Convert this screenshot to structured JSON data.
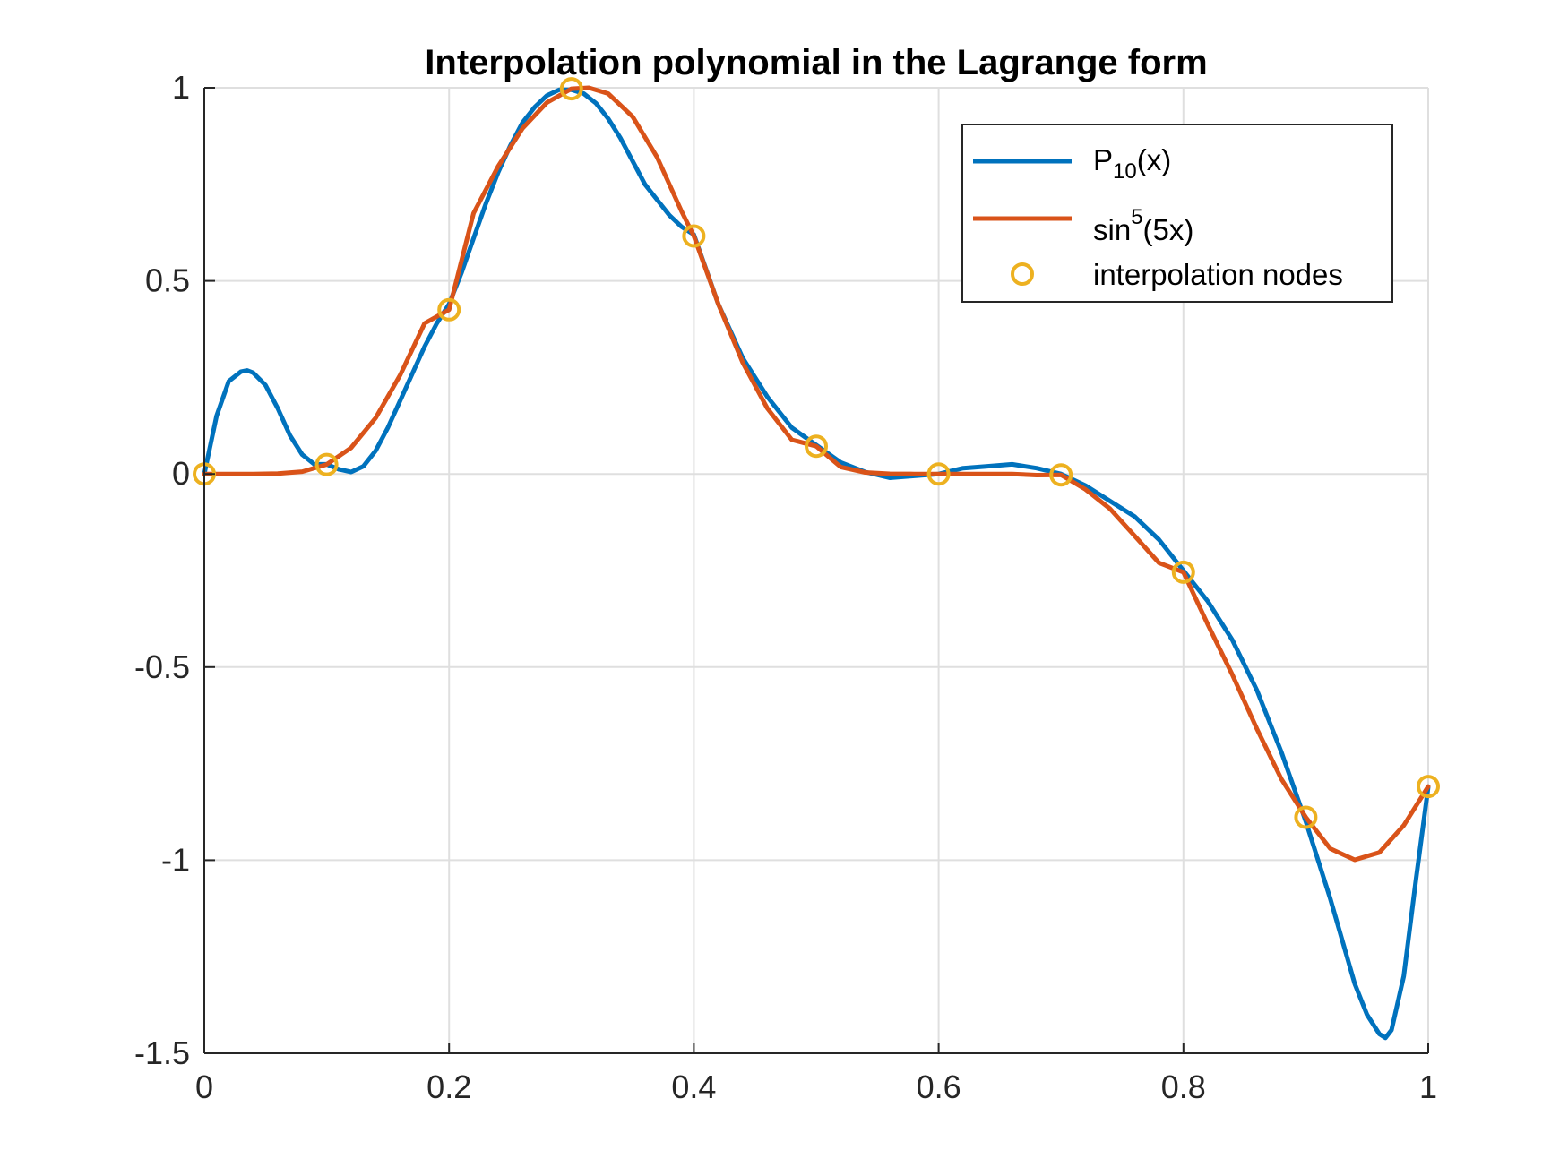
{
  "chart_data": {
    "type": "line",
    "title": "Interpolation polynomial in the Lagrange form",
    "xlabel": "",
    "ylabel": "",
    "xlim": [
      0,
      1
    ],
    "ylim": [
      -1.5,
      1
    ],
    "x_ticks": [
      "0",
      "0.2",
      "0.4",
      "0.6",
      "0.8",
      "1"
    ],
    "x_tick_values": [
      0,
      0.2,
      0.4,
      0.6,
      0.8,
      1
    ],
    "y_ticks": [
      "1",
      "0.5",
      "0",
      "-0.5",
      "-1",
      "-1.5"
    ],
    "y_tick_values": [
      1,
      0.5,
      0,
      -0.5,
      -1,
      -1.5
    ],
    "grid": true,
    "legend_position": "top-right",
    "legend": [
      {
        "base": "P",
        "script": "10",
        "script_type": "sub",
        "tail": "(x)"
      },
      {
        "base": "sin",
        "script": "5",
        "script_type": "sup",
        "tail": "(5x)"
      },
      {
        "base": "interpolation nodes",
        "script": "",
        "script_type": "",
        "tail": ""
      }
    ],
    "series": [
      {
        "style": "line",
        "color": "#0072bd",
        "x": [
          0,
          0.01,
          0.02,
          0.03,
          0.035,
          0.04,
          0.05,
          0.06,
          0.07,
          0.08,
          0.09,
          0.1,
          0.11,
          0.12,
          0.13,
          0.14,
          0.15,
          0.16,
          0.17,
          0.18,
          0.19,
          0.2,
          0.21,
          0.22,
          0.23,
          0.24,
          0.25,
          0.26,
          0.27,
          0.28,
          0.29,
          0.3,
          0.31,
          0.32,
          0.33,
          0.34,
          0.35,
          0.36,
          0.37,
          0.38,
          0.39,
          0.4,
          0.42,
          0.44,
          0.46,
          0.48,
          0.5,
          0.52,
          0.54,
          0.56,
          0.58,
          0.6,
          0.62,
          0.64,
          0.66,
          0.68,
          0.7,
          0.72,
          0.74,
          0.76,
          0.78,
          0.8,
          0.82,
          0.84,
          0.86,
          0.88,
          0.9,
          0.92,
          0.94,
          0.95,
          0.96,
          0.965,
          0.97,
          0.98,
          0.99,
          1
        ],
        "values": [
          0,
          0.15,
          0.24,
          0.265,
          0.268,
          0.262,
          0.23,
          0.17,
          0.1,
          0.05,
          0.025,
          0.025,
          0.012,
          0.005,
          0.02,
          0.06,
          0.12,
          0.19,
          0.26,
          0.33,
          0.39,
          0.44,
          0.52,
          0.61,
          0.7,
          0.78,
          0.85,
          0.91,
          0.95,
          0.98,
          0.995,
          0.995,
          0.985,
          0.96,
          0.92,
          0.87,
          0.81,
          0.75,
          0.71,
          0.67,
          0.64,
          0.62,
          0.44,
          0.3,
          0.2,
          0.12,
          0.075,
          0.03,
          0.005,
          -0.01,
          -0.005,
          0,
          0.015,
          0.02,
          0.025,
          0.015,
          0,
          -0.03,
          -0.07,
          -0.11,
          -0.17,
          -0.25,
          -0.33,
          -0.43,
          -0.56,
          -0.72,
          -0.9,
          -1.1,
          -1.32,
          -1.4,
          -1.45,
          -1.46,
          -1.44,
          -1.3,
          -1.05,
          -0.81
        ]
      },
      {
        "style": "line",
        "color": "#d95319",
        "x": [
          0,
          0.02,
          0.04,
          0.06,
          0.08,
          0.1,
          0.12,
          0.14,
          0.16,
          0.18,
          0.2,
          0.22,
          0.24,
          0.26,
          0.28,
          0.3,
          0.3142,
          0.33,
          0.35,
          0.37,
          0.39,
          0.4,
          0.42,
          0.44,
          0.46,
          0.48,
          0.5,
          0.52,
          0.54,
          0.56,
          0.58,
          0.6,
          0.62,
          0.64,
          0.66,
          0.68,
          0.7,
          0.72,
          0.74,
          0.76,
          0.78,
          0.8,
          0.82,
          0.84,
          0.86,
          0.88,
          0.9,
          0.92,
          0.94,
          0.96,
          0.98,
          1
        ],
        "values": [
          0,
          0,
          0.0001,
          0.001,
          0.006,
          0.0245,
          0.068,
          0.145,
          0.256,
          0.39,
          0.4253,
          0.675,
          0.796,
          0.895,
          0.962,
          0.9975,
          1,
          0.985,
          0.925,
          0.82,
          0.68,
          0.6163,
          0.44,
          0.288,
          0.17,
          0.0886,
          0.0719,
          0.018,
          0.004,
          0.0005,
          0,
          0,
          0,
          0,
          -0.0003,
          -0.003,
          -0.0023,
          -0.04,
          -0.09,
          -0.16,
          -0.23,
          -0.2543,
          -0.39,
          -0.52,
          -0.66,
          -0.79,
          -0.8888,
          -0.97,
          -0.999,
          -0.98,
          -0.91,
          -0.8091
        ]
      },
      {
        "style": "markers",
        "color": "#edb120",
        "x": [
          0,
          0.1,
          0.2,
          0.3,
          0.4,
          0.5,
          0.6,
          0.7,
          0.8,
          0.9,
          1
        ],
        "values": [
          0,
          0.0245,
          0.4253,
          0.9975,
          0.6163,
          0.0719,
          0,
          -0.0023,
          -0.2543,
          -0.8888,
          -0.8091
        ]
      }
    ]
  }
}
